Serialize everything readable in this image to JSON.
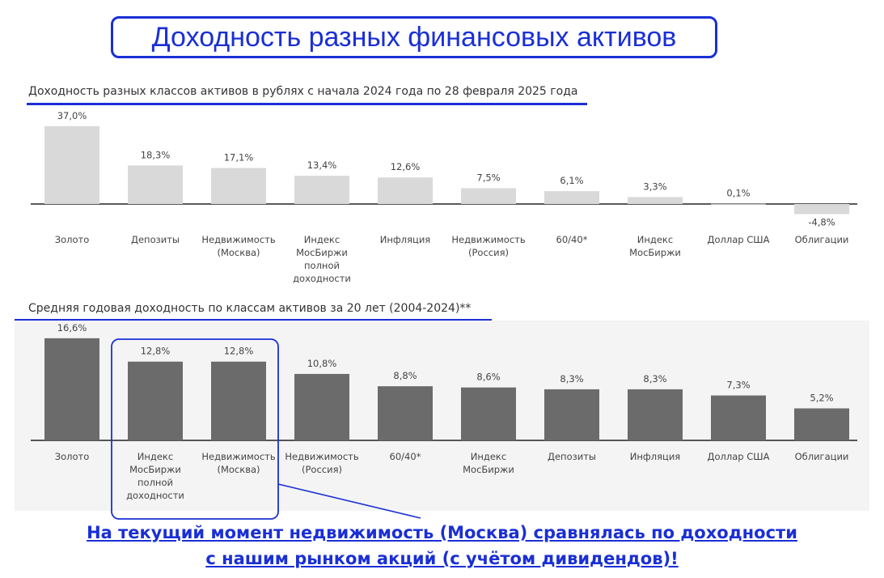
{
  "header": {
    "title": "Доходность разных финансовых активов"
  },
  "chart_data": [
    {
      "type": "bar",
      "title": "Доходность разных классов активов в рублях с начала 2024 года по 28 февраля 2025 года",
      "categories": [
        [
          "Золото"
        ],
        [
          "Депозиты"
        ],
        [
          "Недвижимость",
          "(Москва)"
        ],
        [
          "Индекс",
          "МосБиржи",
          "полной",
          "доходности"
        ],
        [
          "Инфляция"
        ],
        [
          "Недвижимость",
          "(Россия)"
        ],
        [
          "60/40*"
        ],
        [
          "Индекс",
          "МосБиржи"
        ],
        [
          "Доллар США"
        ],
        [
          "Облигации"
        ]
      ],
      "values": [
        37.0,
        18.3,
        17.1,
        13.4,
        12.6,
        7.5,
        6.1,
        3.3,
        0.1,
        -4.8
      ],
      "labels": [
        "37,0%",
        "18,3%",
        "17,1%",
        "13,4%",
        "12,6%",
        "7,5%",
        "6,1%",
        "3,3%",
        "0,1%",
        "-4,8%"
      ],
      "color": "#d9d9d9",
      "ylim": [
        -5,
        40
      ],
      "grid": false
    },
    {
      "type": "bar",
      "title": "Средняя годовая доходность по классам активов за 20 лет (2004-2024)**",
      "categories": [
        [
          "Золото"
        ],
        [
          "Индекс",
          "МосБиржи",
          "полной",
          "доходности"
        ],
        [
          "Недвижимость",
          "(Москва)"
        ],
        [
          "Недвижимость",
          "(Россия)"
        ],
        [
          "60/40*"
        ],
        [
          "Индекс",
          "МосБиржи"
        ],
        [
          "Депозиты"
        ],
        [
          "Инфляция"
        ],
        [
          "Доллар США"
        ],
        [
          "Облигации"
        ]
      ],
      "values": [
        16.6,
        12.8,
        12.8,
        10.8,
        8.8,
        8.6,
        8.3,
        8.3,
        7.3,
        5.2
      ],
      "labels": [
        "16,6%",
        "12,8%",
        "12,8%",
        "10,8%",
        "8,8%",
        "8,6%",
        "8,3%",
        "8,3%",
        "7,3%",
        "5,2%"
      ],
      "color": "#6b6b6b",
      "ylim": [
        0,
        18
      ],
      "grid": false
    }
  ],
  "annotation": {
    "line1": "На текущий момент недвижимость (Москва) сравнялась по доходности",
    "line2": "с нашим рынком акций (с учётом дивидендов)!",
    "color": "#1a2fd6"
  }
}
